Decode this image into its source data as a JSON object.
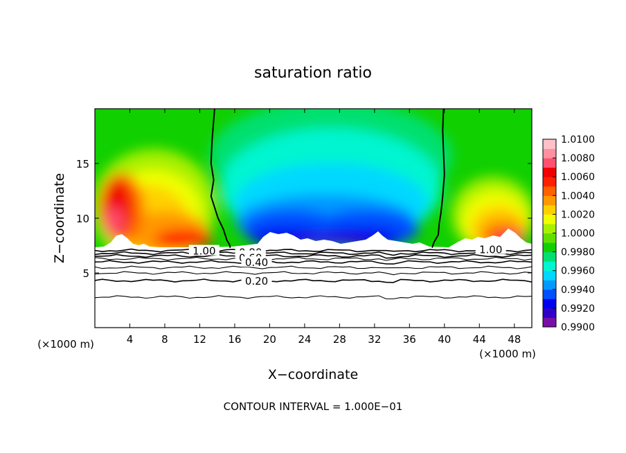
{
  "chart_data": {
    "type": "heatmap",
    "title": "saturation ratio",
    "xlabel": "X−coordinate",
    "ylabel": "Z−coordinate",
    "x_unit_left": "(×1000 m)",
    "x_unit_right": "(×1000 m)",
    "footnote": "CONTOUR INTERVAL = 1.000E−01",
    "xlim": [
      0,
      50
    ],
    "ylim": [
      0,
      20
    ],
    "x_ticks": [
      4,
      8,
      12,
      16,
      20,
      24,
      28,
      32,
      36,
      40,
      44,
      48
    ],
    "y_ticks": [
      5,
      10,
      15
    ],
    "colorbar": {
      "min": 0.99,
      "max": 1.01,
      "labels": [
        "1.0100",
        "1.0080",
        "1.0060",
        "1.0040",
        "1.0020",
        "1.0000",
        "0.9980",
        "0.9960",
        "0.9940",
        "0.9920",
        "0.9900"
      ],
      "colors": [
        "#7a0fa8",
        "#2f00c8",
        "#0000f0",
        "#0050ff",
        "#0098ff",
        "#00d8ff",
        "#00f5d0",
        "#00e070",
        "#10d000",
        "#60e000",
        "#a8f000",
        "#f0ff00",
        "#ffd000",
        "#ff9800",
        "#ff6000",
        "#ff2000",
        "#f00000",
        "#ff5070",
        "#ff90a0",
        "#ffc0c8"
      ]
    },
    "boundary_contours": [
      {
        "label": "1.00",
        "x": [
          13.7,
          13.4,
          13.3,
          13.6,
          13.3,
          14.1,
          14.7,
          15.1,
          15.4,
          15.5
        ],
        "y": [
          20,
          17,
          15,
          13.5,
          12,
          10,
          9,
          8,
          7.6,
          7.3
        ]
      },
      {
        "label": "1.00",
        "x": [
          39.9,
          39.8,
          39.9,
          40.0,
          39.8,
          39.6,
          39.4,
          39.3,
          38.8,
          38.6
        ],
        "y": [
          20,
          18,
          16,
          14,
          12,
          10.5,
          9.5,
          8.5,
          7.8,
          7.3
        ]
      }
    ],
    "lower_contours": [
      {
        "label": "1.00",
        "y": 7.05
      },
      {
        "label": "0.80",
        "y": 6.8
      },
      {
        "label": "0.60",
        "y": 6.55
      },
      {
        "label": "0.40",
        "y": 6.0
      },
      {
        "label": "0.20",
        "y": 4.3
      },
      {
        "label": "",
        "y": 6.3
      },
      {
        "label": "",
        "y": 5.5
      },
      {
        "label": "",
        "y": 5.0
      },
      {
        "label": "",
        "y": 2.8
      }
    ]
  }
}
